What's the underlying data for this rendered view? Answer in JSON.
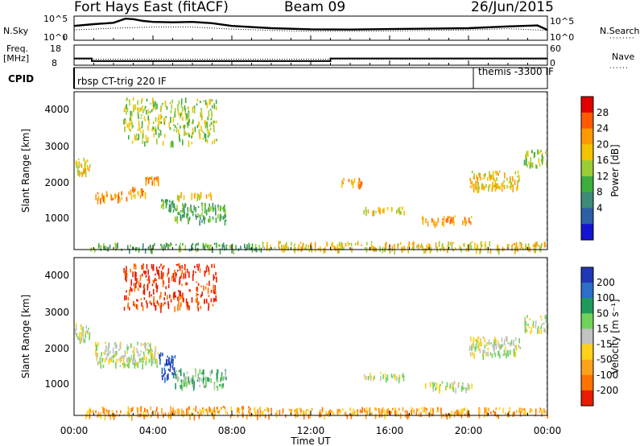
{
  "header": {
    "station": "Fort Hays East (fitACF)",
    "beam": "Beam 09",
    "date": "26/Jun/2015"
  },
  "strip": {
    "nsky_label": "N.Sky",
    "nsky_ticks": [
      "10^5",
      "10^0"
    ],
    "nsearch_label": "N.Search",
    "nsearch_ticks": [
      "10^5",
      "10^0"
    ],
    "freq_label": "Freq.",
    "freq_unit": "[MHz]",
    "freq_ticks": [
      "18",
      "8"
    ],
    "nave_label": "Nave",
    "nave_ticks": [
      "60",
      "0"
    ],
    "cpid_label": "CPID",
    "cpid_left": "rbsp CT-trig 220 IF",
    "cpid_right": "themis -3300 IF"
  },
  "axes": {
    "ylabel": "Slant Range [km]",
    "yticks": [
      "4000",
      "3000",
      "2000",
      "1000"
    ],
    "xticks": [
      "00:00",
      "04:00",
      "08:00",
      "12:00",
      "16:00",
      "20:00",
      "00:00"
    ],
    "xlabel": "Time UT"
  },
  "power_scale": {
    "label": "Power [dB]",
    "ticks": [
      "28",
      "24",
      "20",
      "16",
      "12",
      "8",
      "4"
    ],
    "colors": [
      "#e00000",
      "#ff5a00",
      "#ff9900",
      "#f3c300",
      "#9ccc33",
      "#3cae3c",
      "#3c8c78",
      "#2c5fa6",
      "#1414d0"
    ]
  },
  "velocity_scale": {
    "label": "Velocity [m s⁻¹]",
    "ticks": [
      "200",
      "100",
      "50",
      "15",
      "-15",
      "-50",
      "-100",
      "-200"
    ],
    "colors": [
      "#1f38b5",
      "#2c6ec8",
      "#1f9a5a",
      "#6fd35a",
      "#c2c2c2",
      "#ffd11a",
      "#ffa21a",
      "#ff7200",
      "#e81c00"
    ]
  },
  "chart_data": [
    {
      "type": "line",
      "title": "N.Sky / N.Search",
      "x_unit": "hours UT",
      "xlim": [
        0,
        24
      ],
      "series": [
        {
          "name": "N.Sky",
          "x": [
            0,
            1,
            2,
            2.6,
            3,
            3.5,
            4,
            5,
            6,
            7,
            8,
            10,
            12,
            14,
            16,
            18,
            20,
            22,
            23.5,
            24
          ],
          "y": [
            0.6,
            0.68,
            0.74,
            0.92,
            0.9,
            0.82,
            0.78,
            0.76,
            0.78,
            0.72,
            0.6,
            0.5,
            0.45,
            0.44,
            0.46,
            0.48,
            0.5,
            0.58,
            0.62,
            0.42
          ]
        },
        {
          "name": "N.Search",
          "x": [
            0,
            2,
            4,
            6,
            8,
            10,
            12,
            14,
            16,
            18,
            20,
            22,
            24
          ],
          "y": [
            0.42,
            0.5,
            0.55,
            0.55,
            0.46,
            0.4,
            0.36,
            0.36,
            0.38,
            0.4,
            0.42,
            0.48,
            0.4
          ]
        }
      ]
    },
    {
      "type": "line",
      "title": "Freq. / Nave",
      "x_unit": "hours UT",
      "xlim": [
        0,
        24
      ],
      "series": [
        {
          "name": "Freq.",
          "x": [
            0,
            0.9,
            0.9,
            13.0,
            13.0,
            24
          ],
          "y": [
            11.2,
            11.2,
            9.8,
            9.8,
            11.2,
            11.2
          ]
        },
        {
          "name": "Nave",
          "x": [
            0,
            24
          ],
          "y": [
            17,
            17
          ]
        }
      ]
    },
    {
      "type": "scatter",
      "title": "Power",
      "xlabel": "Time UT",
      "ylabel": "Slant Range [km]",
      "xlim": [
        0,
        24
      ],
      "ylim": [
        180,
        4600
      ],
      "regions": [
        {
          "t": [
            0.0,
            0.8
          ],
          "r": [
            2300,
            2800
          ],
          "level": 3
        },
        {
          "t": [
            1.0,
            2.8
          ],
          "r": [
            1600,
            1820
          ],
          "level": 2
        },
        {
          "t": [
            2.8,
            3.6
          ],
          "r": [
            1700,
            1950
          ],
          "level": 2
        },
        {
          "t": [
            3.6,
            4.3
          ],
          "r": [
            2100,
            2250
          ],
          "level": 2
        },
        {
          "t": [
            4.3,
            5.0
          ],
          "r": [
            1300,
            1600
          ],
          "level": 5
        },
        {
          "t": [
            5.0,
            7.7
          ],
          "r": [
            1000,
            1500
          ],
          "level": 5
        },
        {
          "t": [
            5.2,
            7.0
          ],
          "r": [
            1650,
            1800
          ],
          "level": 3
        },
        {
          "t": [
            0.5,
            9.5
          ],
          "r": [
            200,
            380
          ],
          "level": 5
        },
        {
          "t": [
            9.5,
            24.0
          ],
          "r": [
            200,
            420
          ],
          "level": 3
        },
        {
          "t": [
            13.5,
            14.6
          ],
          "r": [
            2000,
            2200
          ],
          "level": 2
        },
        {
          "t": [
            14.6,
            16.8
          ],
          "r": [
            1250,
            1400
          ],
          "level": 3
        },
        {
          "t": [
            17.6,
            20.2
          ],
          "r": [
            950,
            1150
          ],
          "level": 2
        },
        {
          "t": [
            20.0,
            22.6
          ],
          "r": [
            1900,
            2400
          ],
          "level": 3
        },
        {
          "t": [
            22.8,
            24.0
          ],
          "r": [
            2550,
            3000
          ],
          "level": 4
        },
        {
          "t": [
            2.5,
            7.2
          ],
          "r": [
            3200,
            4450
          ],
          "level": 4
        }
      ]
    },
    {
      "type": "scatter",
      "title": "Velocity",
      "xlabel": "Time UT",
      "ylabel": "Slant Range [km]",
      "xlim": [
        0,
        24
      ],
      "ylim": [
        180,
        4600
      ],
      "regions": [
        {
          "t": [
            0.0,
            0.8
          ],
          "r": [
            2300,
            2800
          ],
          "level": 4
        },
        {
          "t": [
            1.0,
            4.3
          ],
          "r": [
            1600,
            2250
          ],
          "level": 4
        },
        {
          "t": [
            4.3,
            5.1
          ],
          "r": [
            1250,
            1950
          ],
          "level": 0
        },
        {
          "t": [
            5.1,
            7.7
          ],
          "r": [
            1000,
            1500
          ],
          "level": 3
        },
        {
          "t": [
            0.5,
            9.5
          ],
          "r": [
            200,
            450
          ],
          "level": 6
        },
        {
          "t": [
            9.5,
            24.0
          ],
          "r": [
            200,
            420
          ],
          "level": 6
        },
        {
          "t": [
            14.6,
            16.8
          ],
          "r": [
            1250,
            1400
          ],
          "level": 4
        },
        {
          "t": [
            17.6,
            20.2
          ],
          "r": [
            950,
            1150
          ],
          "level": 4
        },
        {
          "t": [
            20.0,
            22.6
          ],
          "r": [
            1900,
            2400
          ],
          "level": 4
        },
        {
          "t": [
            22.8,
            24.0
          ],
          "r": [
            2550,
            3000
          ],
          "level": 4
        },
        {
          "t": [
            2.5,
            7.2
          ],
          "r": [
            3200,
            4450
          ],
          "level": 8
        }
      ]
    }
  ]
}
